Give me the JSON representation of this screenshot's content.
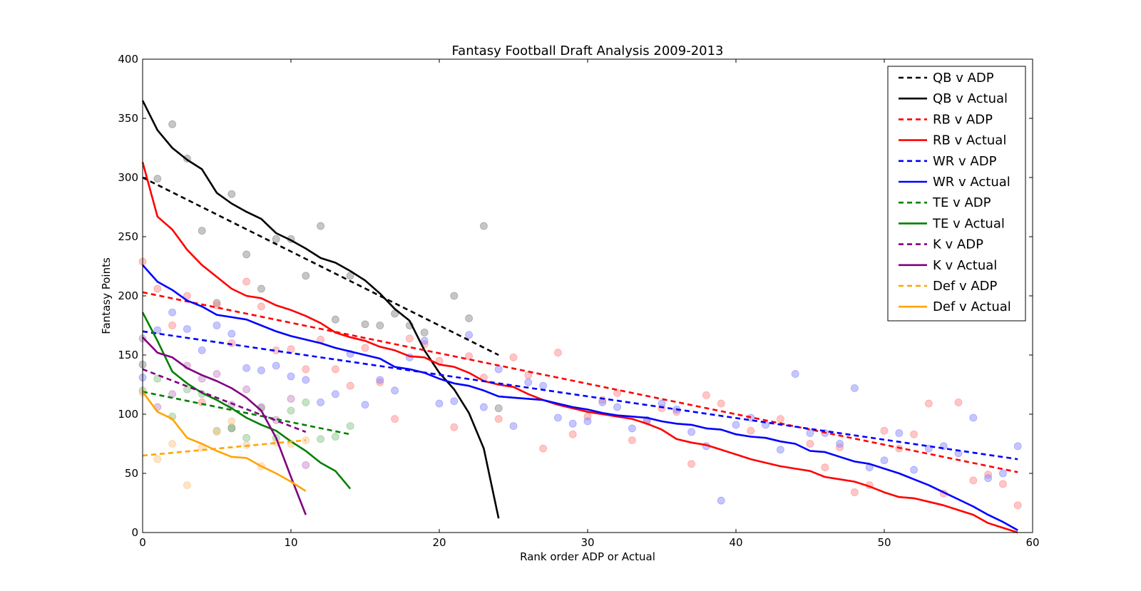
{
  "chart_data": {
    "type": "line",
    "title": "Fantasy Football Draft Analysis 2009-2013",
    "xlabel": "Rank order ADP or Actual",
    "ylabel": "Fantasy Points",
    "xlim": [
      0,
      60
    ],
    "ylim": [
      0,
      400
    ],
    "xticks": [
      0,
      10,
      20,
      30,
      40,
      50,
      60
    ],
    "yticks": [
      0,
      50,
      100,
      150,
      200,
      250,
      300,
      350,
      400
    ],
    "grid": false,
    "legend_position": "top-right",
    "series": [
      {
        "name": "QB v ADP",
        "style": "dashed",
        "color": "#000000",
        "x": [
          0,
          24
        ],
        "y": [
          300,
          150
        ]
      },
      {
        "name": "QB v Actual",
        "style": "solid",
        "color": "#000000",
        "x": [
          0,
          1,
          2,
          3,
          4,
          5,
          6,
          7,
          8,
          9,
          10,
          11,
          12,
          13,
          14,
          15,
          16,
          17,
          18,
          19,
          20,
          21,
          22,
          23,
          24
        ],
        "y": [
          365,
          340,
          325,
          315,
          307,
          287,
          278,
          271,
          265,
          253,
          247,
          240,
          232,
          228,
          221,
          213,
          202,
          189,
          179,
          154,
          135,
          121,
          101,
          71,
          12
        ]
      },
      {
        "name": "RB v ADP",
        "style": "dashed",
        "color": "#ff0000",
        "x": [
          0,
          59
        ],
        "y": [
          203,
          51
        ]
      },
      {
        "name": "RB v Actual",
        "style": "solid",
        "color": "#ff0000",
        "x": [
          0,
          1,
          2,
          3,
          4,
          5,
          6,
          7,
          8,
          9,
          10,
          11,
          12,
          13,
          14,
          15,
          16,
          17,
          18,
          19,
          20,
          21,
          22,
          23,
          24,
          25,
          26,
          27,
          28,
          29,
          30,
          31,
          32,
          33,
          34,
          35,
          36,
          37,
          38,
          39,
          40,
          41,
          42,
          43,
          44,
          45,
          46,
          47,
          48,
          49,
          50,
          51,
          52,
          53,
          54,
          55,
          56,
          57,
          58,
          59
        ],
        "y": [
          313,
          267,
          256,
          239,
          226,
          216,
          206,
          200,
          198,
          192,
          188,
          183,
          177,
          169,
          165,
          162,
          157,
          154,
          149,
          148,
          142,
          140,
          135,
          128,
          125,
          123,
          117,
          112,
          108,
          105,
          102,
          100,
          98,
          96,
          92,
          87,
          79,
          76,
          74,
          70,
          66,
          62,
          59,
          56,
          54,
          52,
          47,
          45,
          43,
          39,
          34,
          30,
          29,
          26,
          23,
          19,
          15,
          8,
          4,
          0
        ]
      },
      {
        "name": "WR v ADP",
        "style": "dashed",
        "color": "#0000ff",
        "x": [
          0,
          59
        ],
        "y": [
          170,
          62
        ]
      },
      {
        "name": "WR v Actual",
        "style": "solid",
        "color": "#0000ff",
        "x": [
          0,
          1,
          2,
          3,
          4,
          5,
          6,
          7,
          8,
          9,
          10,
          11,
          12,
          13,
          14,
          15,
          16,
          17,
          18,
          19,
          20,
          21,
          22,
          23,
          24,
          25,
          26,
          27,
          28,
          29,
          30,
          31,
          32,
          33,
          34,
          35,
          36,
          37,
          38,
          39,
          40,
          41,
          42,
          43,
          44,
          45,
          46,
          47,
          48,
          49,
          50,
          51,
          52,
          53,
          54,
          55,
          56,
          57,
          58,
          59
        ],
        "y": [
          226,
          212,
          205,
          196,
          191,
          184,
          182,
          180,
          175,
          170,
          166,
          163,
          160,
          156,
          153,
          150,
          147,
          140,
          138,
          135,
          130,
          126,
          124,
          120,
          115,
          114,
          113,
          112,
          109,
          106,
          104,
          101,
          99,
          98,
          97,
          94,
          92,
          91,
          88,
          87,
          83,
          81,
          80,
          77,
          75,
          69,
          68,
          64,
          60,
          58,
          54,
          50,
          45,
          40,
          34,
          28,
          22,
          15,
          9,
          2
        ]
      },
      {
        "name": "TE v ADP",
        "style": "dashed",
        "color": "#008000",
        "x": [
          0,
          14
        ],
        "y": [
          119,
          83
        ]
      },
      {
        "name": "TE v Actual",
        "style": "solid",
        "color": "#008000",
        "x": [
          0,
          1,
          2,
          3,
          4,
          5,
          6,
          7,
          8,
          9,
          10,
          11,
          12,
          13,
          14
        ],
        "y": [
          186,
          162,
          136,
          126,
          118,
          112,
          105,
          97,
          91,
          86,
          77,
          69,
          59,
          52,
          37
        ]
      },
      {
        "name": "K v ADP",
        "style": "dashed",
        "color": "#800080",
        "x": [
          0,
          11
        ],
        "y": [
          138,
          85
        ]
      },
      {
        "name": "K v Actual",
        "style": "solid",
        "color": "#800080",
        "x": [
          0,
          1,
          2,
          3,
          4,
          5,
          6,
          7,
          8,
          9,
          10,
          11
        ],
        "y": [
          165,
          152,
          148,
          139,
          133,
          128,
          122,
          114,
          103,
          80,
          47,
          15
        ]
      },
      {
        "name": "Def v ADP",
        "style": "dashed",
        "color": "#ffa500",
        "x": [
          0,
          11
        ],
        "y": [
          65,
          78
        ]
      },
      {
        "name": "Def v Actual",
        "style": "solid",
        "color": "#ffa500",
        "x": [
          0,
          1,
          2,
          3,
          4,
          5,
          6,
          7,
          8,
          9,
          10,
          11
        ],
        "y": [
          119,
          102,
          96,
          80,
          75,
          69,
          64,
          63,
          56,
          50,
          43,
          35
        ]
      }
    ],
    "scatter": [
      {
        "color": "#808080",
        "points": [
          [
            0,
            142
          ],
          [
            1,
            299
          ],
          [
            2,
            345
          ],
          [
            3,
            316
          ],
          [
            4,
            255
          ],
          [
            5,
            194
          ],
          [
            6,
            286
          ],
          [
            6,
            88
          ],
          [
            7,
            235
          ],
          [
            8,
            206
          ],
          [
            9,
            248
          ],
          [
            10,
            248
          ],
          [
            11,
            217
          ],
          [
            12,
            259
          ],
          [
            13,
            180
          ],
          [
            14,
            217
          ],
          [
            15,
            176
          ],
          [
            16,
            175
          ],
          [
            17,
            185
          ],
          [
            18,
            175
          ],
          [
            19,
            169
          ],
          [
            21,
            200
          ],
          [
            22,
            181
          ],
          [
            23,
            259
          ],
          [
            24,
            105
          ]
        ]
      },
      {
        "color": "#ff8080",
        "points": [
          [
            0,
            229
          ],
          [
            1,
            206
          ],
          [
            2,
            175
          ],
          [
            3,
            200
          ],
          [
            4,
            110
          ],
          [
            5,
            192
          ],
          [
            6,
            160
          ],
          [
            7,
            212
          ],
          [
            8,
            191
          ],
          [
            9,
            154
          ],
          [
            10,
            155
          ],
          [
            11,
            138
          ],
          [
            12,
            163
          ],
          [
            13,
            138
          ],
          [
            14,
            124
          ],
          [
            15,
            156
          ],
          [
            16,
            127
          ],
          [
            17,
            96
          ],
          [
            18,
            164
          ],
          [
            19,
            159
          ],
          [
            20,
            145
          ],
          [
            21,
            89
          ],
          [
            22,
            149
          ],
          [
            23,
            131
          ],
          [
            24,
            96
          ],
          [
            25,
            148
          ],
          [
            26,
            133
          ],
          [
            27,
            71
          ],
          [
            28,
            152
          ],
          [
            29,
            83
          ],
          [
            30,
            98
          ],
          [
            31,
            112
          ],
          [
            32,
            118
          ],
          [
            33,
            78
          ],
          [
            34,
            94
          ],
          [
            35,
            105
          ],
          [
            36,
            102
          ],
          [
            37,
            58
          ],
          [
            38,
            116
          ],
          [
            39,
            109
          ],
          [
            41,
            86
          ],
          [
            43,
            96
          ],
          [
            45,
            75
          ],
          [
            46,
            55
          ],
          [
            47,
            72
          ],
          [
            48,
            34
          ],
          [
            49,
            40
          ],
          [
            50,
            86
          ],
          [
            51,
            71
          ],
          [
            52,
            83
          ],
          [
            53,
            109
          ],
          [
            54,
            33
          ],
          [
            55,
            110
          ],
          [
            56,
            44
          ],
          [
            57,
            49
          ],
          [
            58,
            41
          ],
          [
            59,
            23
          ]
        ]
      },
      {
        "color": "#8080ff",
        "points": [
          [
            0,
            131
          ],
          [
            1,
            171
          ],
          [
            2,
            186
          ],
          [
            3,
            172
          ],
          [
            4,
            154
          ],
          [
            5,
            175
          ],
          [
            6,
            168
          ],
          [
            7,
            139
          ],
          [
            8,
            137
          ],
          [
            9,
            141
          ],
          [
            10,
            132
          ],
          [
            11,
            129
          ],
          [
            12,
            110
          ],
          [
            13,
            117
          ],
          [
            14,
            151
          ],
          [
            15,
            108
          ],
          [
            16,
            129
          ],
          [
            17,
            120
          ],
          [
            18,
            148
          ],
          [
            19,
            162
          ],
          [
            20,
            109
          ],
          [
            21,
            111
          ],
          [
            22,
            167
          ],
          [
            23,
            106
          ],
          [
            24,
            138
          ],
          [
            25,
            90
          ],
          [
            26,
            127
          ],
          [
            27,
            124
          ],
          [
            28,
            97
          ],
          [
            29,
            92
          ],
          [
            30,
            94
          ],
          [
            31,
            110
          ],
          [
            32,
            106
          ],
          [
            33,
            88
          ],
          [
            34,
            95
          ],
          [
            35,
            109
          ],
          [
            36,
            104
          ],
          [
            37,
            85
          ],
          [
            38,
            73
          ],
          [
            39,
            27
          ],
          [
            40,
            91
          ],
          [
            41,
            97
          ],
          [
            42,
            91
          ],
          [
            43,
            70
          ],
          [
            44,
            134
          ],
          [
            45,
            84
          ],
          [
            46,
            84
          ],
          [
            47,
            75
          ],
          [
            48,
            122
          ],
          [
            49,
            55
          ],
          [
            50,
            61
          ],
          [
            51,
            84
          ],
          [
            52,
            53
          ],
          [
            53,
            71
          ],
          [
            54,
            73
          ],
          [
            55,
            67
          ],
          [
            56,
            97
          ],
          [
            57,
            46
          ],
          [
            58,
            50
          ],
          [
            59,
            73
          ]
        ]
      },
      {
        "color": "#80c080",
        "points": [
          [
            0,
            120
          ],
          [
            1,
            130
          ],
          [
            2,
            98
          ],
          [
            3,
            121
          ],
          [
            4,
            117
          ],
          [
            5,
            86
          ],
          [
            6,
            89
          ],
          [
            7,
            80
          ],
          [
            8,
            105
          ],
          [
            9,
            80
          ],
          [
            10,
            103
          ],
          [
            11,
            110
          ],
          [
            12,
            79
          ],
          [
            13,
            81
          ],
          [
            14,
            90
          ]
        ]
      },
      {
        "color": "#c080c0",
        "points": [
          [
            0,
            164
          ],
          [
            1,
            106
          ],
          [
            2,
            117
          ],
          [
            3,
            141
          ],
          [
            4,
            130
          ],
          [
            5,
            134
          ],
          [
            6,
            108
          ],
          [
            7,
            121
          ],
          [
            8,
            106
          ],
          [
            9,
            95
          ],
          [
            10,
            113
          ],
          [
            11,
            57
          ]
        ]
      },
      {
        "color": "#ffc080",
        "points": [
          [
            0,
            118
          ],
          [
            1,
            62
          ],
          [
            2,
            75
          ],
          [
            3,
            40
          ],
          [
            4,
            72
          ],
          [
            5,
            85
          ],
          [
            6,
            94
          ],
          [
            7,
            74
          ],
          [
            8,
            56
          ],
          [
            9,
            76
          ],
          [
            10,
            75
          ],
          [
            11,
            78
          ]
        ]
      }
    ]
  }
}
